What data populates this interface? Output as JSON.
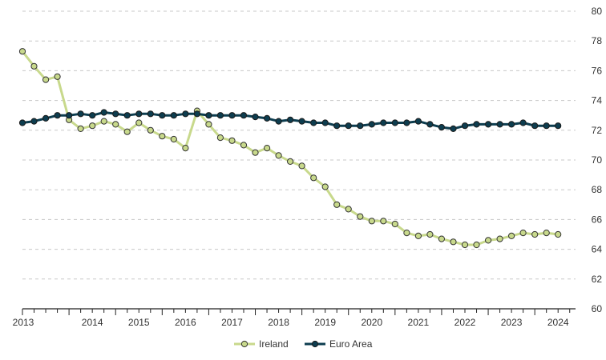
{
  "chart_data": {
    "type": "line",
    "title": "",
    "xlabel": "",
    "ylabel": "",
    "ylim": [
      60,
      80
    ],
    "yticks": [
      60,
      62,
      64,
      66,
      68,
      70,
      72,
      74,
      76,
      78,
      80
    ],
    "xlim": [
      2013.0,
      2024.875
    ],
    "xtick_labels": [
      "2013",
      "2014",
      "2015",
      "2016",
      "2017",
      "2018",
      "2019",
      "2020",
      "2021",
      "2022",
      "2023",
      "2024"
    ],
    "grid": "horizontal dashed",
    "y_axis_side": "right",
    "legend_position": "bottom-center",
    "colors": {
      "ireland": "#c8d98c",
      "euro_area": "#0d3d4f"
    },
    "series": [
      {
        "name": "Ireland",
        "values": [
          77.3,
          76.3,
          75.4,
          75.6,
          72.7,
          72.1,
          72.3,
          72.6,
          72.4,
          71.9,
          72.5,
          72.0,
          71.6,
          71.4,
          70.8,
          73.3,
          72.4,
          71.5,
          71.3,
          71.0,
          70.5,
          70.8,
          70.3,
          69.9,
          69.6,
          68.8,
          68.2,
          67.0,
          66.7,
          66.2,
          65.9,
          65.9,
          65.7,
          65.1,
          64.9,
          65.0,
          64.7,
          64.5,
          64.3,
          64.3,
          64.6,
          64.7,
          64.9,
          65.1,
          65.0,
          65.1,
          65.0
        ]
      },
      {
        "name": "Euro Area",
        "values": [
          72.5,
          72.6,
          72.8,
          73.0,
          73.0,
          73.1,
          73.0,
          73.2,
          73.1,
          73.0,
          73.1,
          73.1,
          73.0,
          73.0,
          73.1,
          73.1,
          73.0,
          73.0,
          73.0,
          73.0,
          72.9,
          72.8,
          72.6,
          72.7,
          72.6,
          72.5,
          72.5,
          72.3,
          72.3,
          72.3,
          72.4,
          72.5,
          72.5,
          72.5,
          72.6,
          72.4,
          72.2,
          72.1,
          72.3,
          72.4,
          72.4,
          72.4,
          72.4,
          72.5,
          72.3,
          72.3,
          72.3
        ]
      }
    ]
  }
}
